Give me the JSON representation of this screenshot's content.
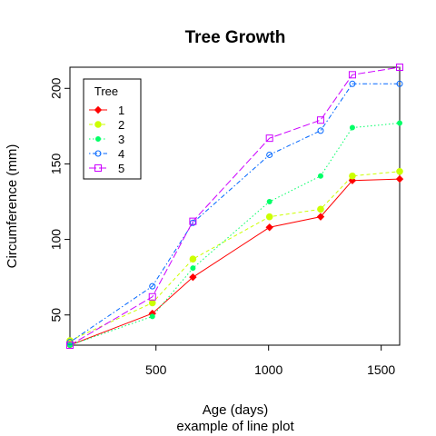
{
  "chart_data": {
    "type": "line",
    "title": "Tree Growth",
    "xlabel": "Age (days)",
    "sub": "example of line plot",
    "ylabel": "Circumference (mm)",
    "xlim": [
      118,
      1582
    ],
    "ylim": [
      30,
      214
    ],
    "xticks": [
      500,
      1000,
      1500
    ],
    "yticks": [
      50,
      100,
      150,
      200
    ],
    "x": [
      118,
      484,
      664,
      1004,
      1231,
      1372,
      1582
    ],
    "legend": {
      "title": "Tree",
      "position": "top-left"
    },
    "series": [
      {
        "name": "1",
        "color": "#ff0000",
        "lty": "solid",
        "marker": "diamond",
        "values": [
          30,
          51,
          75,
          108,
          115,
          139,
          140
        ]
      },
      {
        "name": "2",
        "color": "#ccff00",
        "lty": "dashed",
        "marker": "circle-filled",
        "values": [
          33,
          58,
          87,
          115,
          120,
          142,
          145
        ]
      },
      {
        "name": "3",
        "color": "#00ff66",
        "lty": "dotted",
        "marker": "circle-filled-small",
        "values": [
          30,
          49,
          81,
          125,
          142,
          174,
          177
        ]
      },
      {
        "name": "4",
        "color": "#0066ff",
        "lty": "dotdash",
        "marker": "circle-open",
        "values": [
          32,
          69,
          111,
          156,
          172,
          203,
          203
        ]
      },
      {
        "name": "5",
        "color": "#cc00ff",
        "lty": "longdash",
        "marker": "square-open",
        "values": [
          30,
          62,
          112,
          167,
          179,
          209,
          214
        ]
      }
    ]
  }
}
